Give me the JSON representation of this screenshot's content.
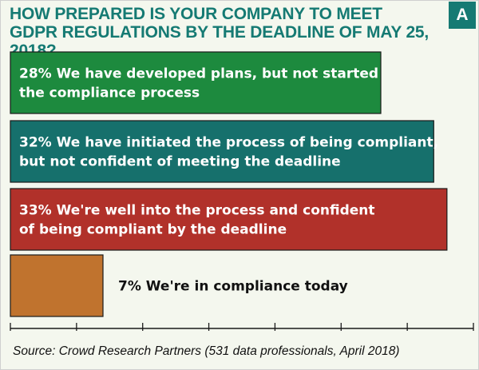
{
  "title": "HOW PREPARED IS YOUR COMPANY TO MEET GDPR REGULATIONS BY THE DEADLINE OF MAY 25, 2018?",
  "badge": "A",
  "source": "Source: Crowd Research Partners (531 data professionals, April 2018)",
  "colors": {
    "title": "#157a73",
    "background": "#f4f7ee"
  },
  "chart_data": {
    "type": "bar",
    "orientation": "horizontal",
    "title": "HOW PREPARED IS YOUR COMPANY TO MEET GDPR REGULATIONS BY THE DEADLINE OF MAY 25, 2018?",
    "xlim": [
      0,
      35
    ],
    "x_tick_count": 7,
    "grid": false,
    "bars": [
      {
        "value": 28,
        "lines": [
          "28% We have developed plans, but not started",
          "the compliance process"
        ],
        "color": "#1d8a3e",
        "label_color": "#ffffff",
        "label_position": "inside"
      },
      {
        "value": 32,
        "lines": [
          "32% We have initiated the process of being compliant,",
          "but not confident of meeting the deadline"
        ],
        "color": "#16706c",
        "label_color": "#ffffff",
        "label_position": "inside"
      },
      {
        "value": 33,
        "lines": [
          "33% We're well into the process and confident",
          "of being compliant by the deadline"
        ],
        "color": "#b1312a",
        "label_color": "#ffffff",
        "label_position": "inside"
      },
      {
        "value": 7,
        "lines": [
          "7% We're in compliance today"
        ],
        "color": "#c0732e",
        "label_color": "#111111",
        "label_position": "outside"
      }
    ]
  }
}
